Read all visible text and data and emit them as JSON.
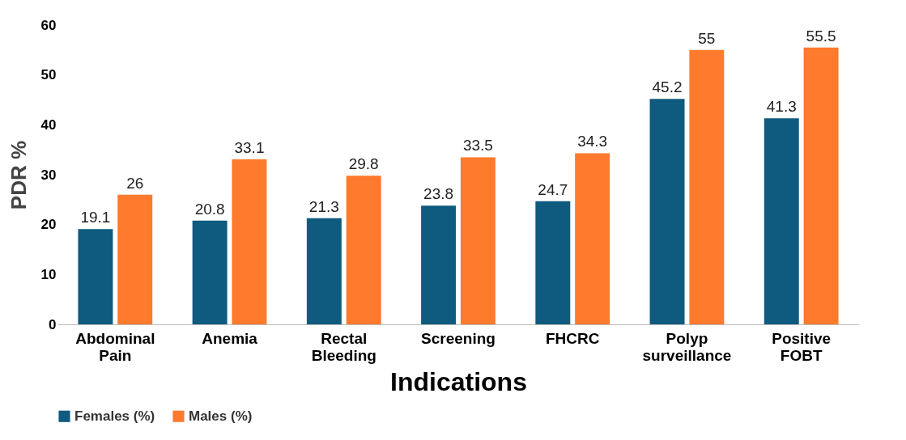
{
  "chart_data": {
    "type": "bar",
    "xlabel": "Indications",
    "ylabel": "PDR %",
    "categories": [
      "Abdominal Pain",
      "Anemia",
      "Rectal Bleeding",
      "Screening",
      "FHCRC",
      "Polyp surveillance",
      "Positive FOBT"
    ],
    "series": [
      {
        "name": "Females (%)",
        "color": "#0f5b7f",
        "values": [
          19.1,
          20.8,
          21.3,
          23.8,
          24.7,
          45.2,
          41.3
        ]
      },
      {
        "name": "Males (%)",
        "color": "#fe7a2c",
        "values": [
          26,
          33.1,
          29.8,
          33.5,
          34.3,
          55,
          55.5
        ]
      }
    ],
    "ylim": [
      0,
      60
    ],
    "yticks": [
      0,
      10,
      20,
      30,
      40,
      50,
      60
    ],
    "grid": false,
    "legend": "bottom",
    "data_labels": true
  }
}
